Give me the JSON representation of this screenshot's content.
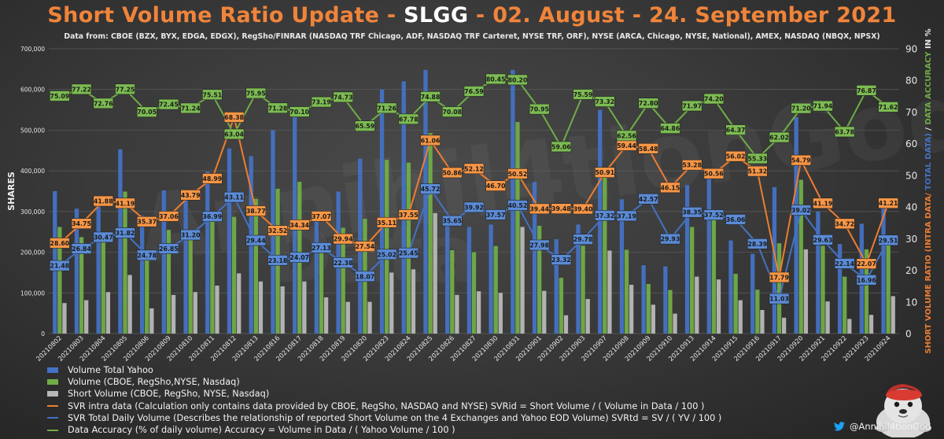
{
  "title": {
    "prefix": "Short Volume Ratio Update - ",
    "ticker": "SLGG",
    "suffix": " - 02. August - 24. September 2021"
  },
  "subtitle": "Data from: CBOE (BZX, BYX, EDGA, EDGX), RegSho/FINRAR (NASDAQ TRF Chicago, ADF, NASDAQ TRF Carteret, NYSE TRF, ORF), NYSE (ARCA, Chicago, NYSE, National), AMEX, NASDAQ (NBQX, NPSX)",
  "watermark": "Annihil4tionGod",
  "watermark2": "Data",
  "handle": "@Annihil4tionGod",
  "colors": {
    "blue": "#4472c4",
    "green": "#70ad47",
    "gray": "#b8b8b8",
    "orange": "#ed7d31",
    "title": "#f0843a"
  },
  "legend": [
    {
      "label": "Volume Total Yahoo",
      "kind": "box",
      "color": "#4472c4"
    },
    {
      "label": "Volume (CBOE, RegSho,NYSE, Nasdaq)",
      "kind": "box",
      "color": "#70ad47"
    },
    {
      "label": "Short  Volume (CBOE, RegSho, NYSE, Nasdaq)",
      "kind": "box",
      "color": "#b8b8b8"
    },
    {
      "label": "SVR intra data (Calculation only contains data provided by CBOE, RegSho, NASDAQ and NYSE) SVRid = Short Volume / ( Volume in Data / 100 )",
      "kind": "line",
      "color": "#ed7d31"
    },
    {
      "label": "SVR Total Daily Volume (Describes the relationship of reported Short Volume on the 4 Exchanges and Yahoo EOD Volume) SVRtd = SV / ( YV / 100 )",
      "kind": "line",
      "color": "#4472c4"
    },
    {
      "label": "Data Accuracy (% of daily volume) Accuracy = Volume in Data / ( Yahoo Volume / 100 )",
      "kind": "line",
      "color": "#70ad47"
    }
  ],
  "chart_data": {
    "type": "bar+line",
    "categories": [
      "20210802",
      "20210803",
      "20210804",
      "20210805",
      "20210806",
      "20210809",
      "20210810",
      "20210811",
      "20210812",
      "20210813",
      "20210816",
      "20210817",
      "20210818",
      "20210819",
      "20210820",
      "20210823",
      "20210824",
      "20210825",
      "20210826",
      "20210827",
      "20210830",
      "20210831",
      "20210901",
      "20210902",
      "20210903",
      "20210907",
      "20210908",
      "20210909",
      "20210910",
      "20210913",
      "20210914",
      "20210915",
      "20210916",
      "20210917",
      "20210920",
      "20210921",
      "20210922",
      "20210923",
      "20210924"
    ],
    "ylabel_left": "SHARES",
    "ylabel_right": {
      "orange": "SHORT VOLUME RATIO (INTRA DATA/",
      "blue": " TOTAL DATA)",
      "sep": " / ",
      "green": "DATA ACCURACY",
      "tail": " IN %"
    },
    "ylim_left": [
      0,
      700000
    ],
    "ylim_right": [
      0,
      90
    ],
    "left_ticks": [
      "0",
      "100,000",
      "200,000",
      "300,000",
      "400,000",
      "500,000",
      "600,000",
      "700,000"
    ],
    "right_ticks": [
      "0",
      "10",
      "20",
      "30",
      "40",
      "50",
      "60",
      "70",
      "80",
      "90"
    ],
    "grid": true,
    "series": [
      {
        "name": "Volume Total Yahoo",
        "kind": "bar",
        "color": "#4472c4",
        "values": [
          350000,
          307000,
          337000,
          453000,
          290000,
          352000,
          344000,
          398000,
          455000,
          436000,
          500000,
          532000,
          290000,
          349000,
          430000,
          600000,
          620000,
          648000,
          290000,
          262000,
          268000,
          648000,
          373000,
          232000,
          268000,
          550000,
          330000,
          168000,
          165000,
          365000,
          405000,
          229000,
          196000,
          360000,
          532000,
          300000,
          220000,
          270000,
          310000
        ]
      },
      {
        "name": "Volume (CBOE, RegSho,NYSE, Nasdaq)",
        "kind": "bar",
        "color": "#70ad47",
        "values": [
          262000,
          237000,
          245000,
          349000,
          203000,
          255000,
          245000,
          300000,
          287000,
          331000,
          356000,
          373000,
          212000,
          260000,
          282000,
          427000,
          420000,
          493000,
          205000,
          200000,
          215000,
          520000,
          265000,
          137000,
          216000,
          402000,
          206000,
          122000,
          107000,
          262000,
          300000,
          147000,
          108000,
          222000,
          378000,
          216000,
          140000,
          207000,
          223000
        ]
      },
      {
        "name": "Short  Volume (CBOE, RegSho, NYSE, Nasdaq)",
        "kind": "bar",
        "color": "#b8b8b8",
        "values": [
          75000,
          82000,
          102000,
          144000,
          62000,
          95000,
          102000,
          118000,
          148000,
          128000,
          116000,
          128000,
          89000,
          78000,
          78000,
          150000,
          158000,
          296000,
          95000,
          104000,
          100000,
          262000,
          105000,
          45000,
          85000,
          204000,
          120000,
          71000,
          49000,
          140000,
          133000,
          82000,
          58000,
          39000,
          207000,
          79000,
          36000,
          46000,
          92000
        ]
      },
      {
        "name": "SVR intra data",
        "kind": "line",
        "color": "#ed7d31",
        "values": [
          28.6,
          34.75,
          41.88,
          41.19,
          35.37,
          37.06,
          43.79,
          48.99,
          68.38,
          38.77,
          32.52,
          34.34,
          37.07,
          29.94,
          27.54,
          35.11,
          37.55,
          61.06,
          50.86,
          52.12,
          46.7,
          50.52,
          39.44,
          39.48,
          39.4,
          50.91,
          59.44,
          58.48,
          46.15,
          53.28,
          50.56,
          56.02,
          51.32,
          17.79,
          54.79,
          41.19,
          34.72,
          22.07,
          41.21
        ]
      },
      {
        "name": "SVR Total Daily Volume",
        "kind": "line",
        "color": "#4472c4",
        "values": [
          21.48,
          26.84,
          30.47,
          31.82,
          24.78,
          26.85,
          31.2,
          36.99,
          43.11,
          29.44,
          23.18,
          24.07,
          27.13,
          22.38,
          18.07,
          25.02,
          25.45,
          45.72,
          35.65,
          39.92,
          37.57,
          40.52,
          27.98,
          23.32,
          29.78,
          37.32,
          37.19,
          42.57,
          29.93,
          38.35,
          37.52,
          36.06,
          28.39,
          11.03,
          39.02,
          29.63,
          22.14,
          16.96,
          29.51
        ]
      },
      {
        "name": "Data Accuracy",
        "kind": "line",
        "color": "#70ad47",
        "values": [
          75.09,
          77.22,
          72.76,
          77.25,
          70.05,
          72.45,
          71.24,
          75.51,
          63.04,
          75.95,
          71.28,
          70.1,
          73.19,
          74.73,
          65.59,
          71.26,
          67.78,
          74.88,
          70.08,
          76.59,
          80.45,
          80.2,
          70.95,
          59.06,
          75.59,
          73.32,
          62.56,
          72.8,
          64.86,
          71.97,
          74.2,
          64.37,
          55.33,
          62.02,
          71.2,
          71.94,
          63.78,
          76.87,
          71.62
        ]
      }
    ]
  }
}
